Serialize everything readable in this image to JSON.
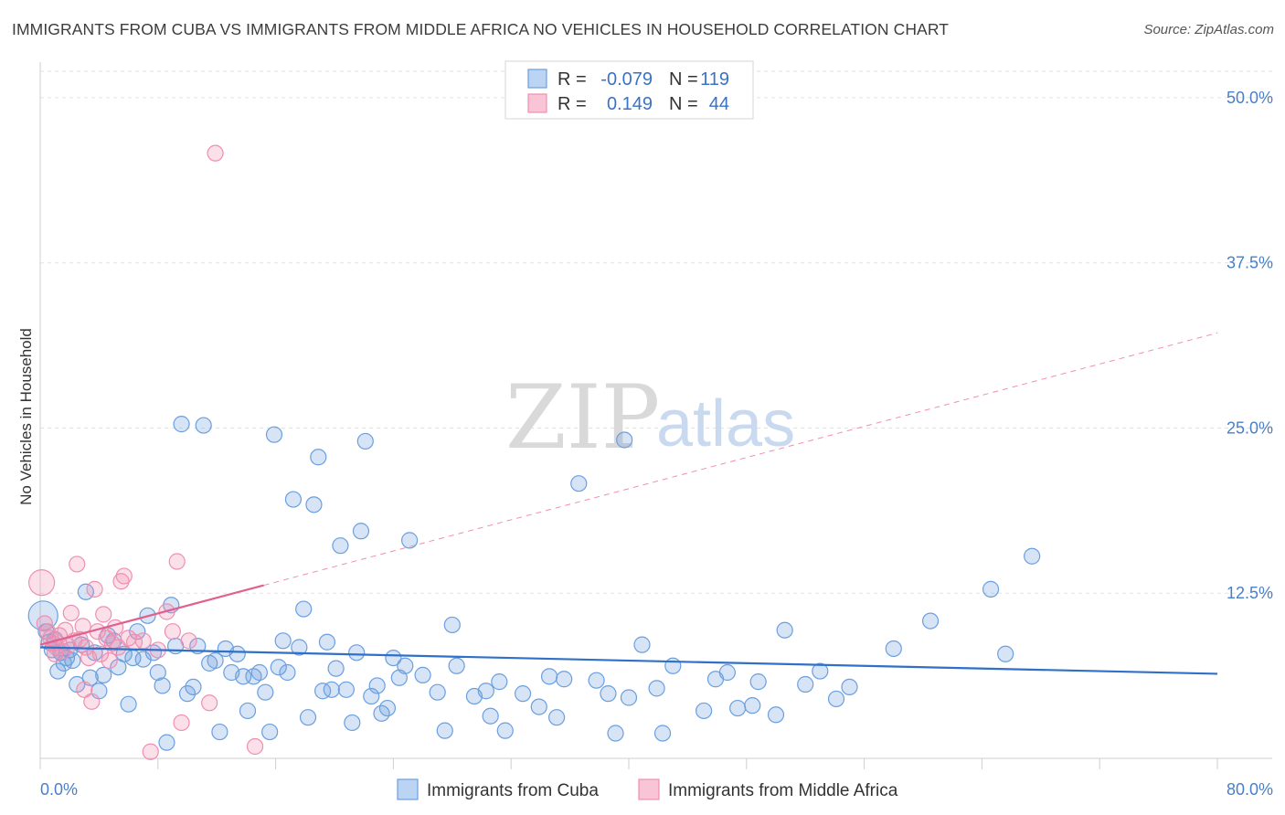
{
  "title": "IMMIGRANTS FROM CUBA VS IMMIGRANTS FROM MIDDLE AFRICA NO VEHICLES IN HOUSEHOLD CORRELATION CHART",
  "source": "Source: ZipAtlas.com",
  "watermark": {
    "zip": "ZIP",
    "atlas": "atlas"
  },
  "colors": {
    "cuba": "#6a9fe0",
    "cuba_line": "#3070c8",
    "africa": "#ef8fb0",
    "africa_line": "#e0608f",
    "tick_label": "#4a7fc8"
  },
  "legend": {
    "r_label": "R =",
    "n_label": "N =",
    "rows": [
      {
        "r": "-0.079",
        "n": "119"
      },
      {
        "r": "0.149",
        "n": "44"
      }
    ]
  },
  "chart_data": {
    "type": "scatter",
    "title": "IMMIGRANTS FROM CUBA VS IMMIGRANTS FROM MIDDLE AFRICA NO VEHICLES IN HOUSEHOLD CORRELATION CHART",
    "xlabel": "",
    "ylabel": "No Vehicles in Household",
    "xlim": [
      0,
      80
    ],
    "ylim": [
      0,
      52
    ],
    "x_tick_labels": [
      "0.0%",
      "80.0%"
    ],
    "y_ticks": [
      12.5,
      25.0,
      37.5,
      50.0
    ],
    "y_tick_labels": [
      "12.5%",
      "25.0%",
      "37.5%",
      "50.0%"
    ],
    "grid": true,
    "legend_position": "top-center",
    "series": [
      {
        "name": "Immigrants from Cuba",
        "trend": {
          "x0": 0,
          "y0": 8.4,
          "x1": 80,
          "y1": 6.4
        },
        "points": [
          [
            0.2,
            10.8
          ],
          [
            0.4,
            9.6
          ],
          [
            0.6,
            8.8
          ],
          [
            0.8,
            8.2
          ],
          [
            1.0,
            9.0
          ],
          [
            1.2,
            6.6
          ],
          [
            1.4,
            8.0
          ],
          [
            1.6,
            7.2
          ],
          [
            1.8,
            7.6
          ],
          [
            2.0,
            8.2
          ],
          [
            2.2,
            7.4
          ],
          [
            2.5,
            5.6
          ],
          [
            2.8,
            8.6
          ],
          [
            3.1,
            12.6
          ],
          [
            3.4,
            6.1
          ],
          [
            3.7,
            8.0
          ],
          [
            4.0,
            5.1
          ],
          [
            4.3,
            6.3
          ],
          [
            4.6,
            9.3
          ],
          [
            5.0,
            8.9
          ],
          [
            5.3,
            6.9
          ],
          [
            5.7,
            7.9
          ],
          [
            6.0,
            4.1
          ],
          [
            6.3,
            7.6
          ],
          [
            6.6,
            9.6
          ],
          [
            7.0,
            7.5
          ],
          [
            7.3,
            10.8
          ],
          [
            7.7,
            8.0
          ],
          [
            8.0,
            6.5
          ],
          [
            8.3,
            5.5
          ],
          [
            8.6,
            1.2
          ],
          [
            8.9,
            11.6
          ],
          [
            9.2,
            8.5
          ],
          [
            9.6,
            25.3
          ],
          [
            10.0,
            4.9
          ],
          [
            10.4,
            5.4
          ],
          [
            10.7,
            8.5
          ],
          [
            11.1,
            25.2
          ],
          [
            11.5,
            7.2
          ],
          [
            11.9,
            7.4
          ],
          [
            12.2,
            2.0
          ],
          [
            12.6,
            8.3
          ],
          [
            13.0,
            6.5
          ],
          [
            13.4,
            7.9
          ],
          [
            13.8,
            6.2
          ],
          [
            14.1,
            3.6
          ],
          [
            14.5,
            6.2
          ],
          [
            14.9,
            6.5
          ],
          [
            15.3,
            5.0
          ],
          [
            15.6,
            2.0
          ],
          [
            15.9,
            24.5
          ],
          [
            16.2,
            6.9
          ],
          [
            16.5,
            8.9
          ],
          [
            16.8,
            6.5
          ],
          [
            17.2,
            19.6
          ],
          [
            17.6,
            8.4
          ],
          [
            17.9,
            11.3
          ],
          [
            18.2,
            3.1
          ],
          [
            18.6,
            19.2
          ],
          [
            18.9,
            22.8
          ],
          [
            19.2,
            5.1
          ],
          [
            19.5,
            8.8
          ],
          [
            19.8,
            5.2
          ],
          [
            20.1,
            6.8
          ],
          [
            20.4,
            16.1
          ],
          [
            20.8,
            5.2
          ],
          [
            21.2,
            2.7
          ],
          [
            21.5,
            8.0
          ],
          [
            21.8,
            17.2
          ],
          [
            22.1,
            24.0
          ],
          [
            22.5,
            4.7
          ],
          [
            22.9,
            5.5
          ],
          [
            23.2,
            3.4
          ],
          [
            23.6,
            3.8
          ],
          [
            24.0,
            7.6
          ],
          [
            24.4,
            6.1
          ],
          [
            24.8,
            7.0
          ],
          [
            25.1,
            16.5
          ],
          [
            26.0,
            6.3
          ],
          [
            27.0,
            5.0
          ],
          [
            27.5,
            2.1
          ],
          [
            28.0,
            10.1
          ],
          [
            28.3,
            7.0
          ],
          [
            29.5,
            4.7
          ],
          [
            30.3,
            5.1
          ],
          [
            30.6,
            3.2
          ],
          [
            31.2,
            5.8
          ],
          [
            31.6,
            2.1
          ],
          [
            32.8,
            4.9
          ],
          [
            33.9,
            3.9
          ],
          [
            34.6,
            6.2
          ],
          [
            35.1,
            3.1
          ],
          [
            35.6,
            6.0
          ],
          [
            36.6,
            20.8
          ],
          [
            37.8,
            5.9
          ],
          [
            38.6,
            4.9
          ],
          [
            39.1,
            1.9
          ],
          [
            39.7,
            24.1
          ],
          [
            40.0,
            4.6
          ],
          [
            40.9,
            8.6
          ],
          [
            41.9,
            5.3
          ],
          [
            42.3,
            1.9
          ],
          [
            43.0,
            7.0
          ],
          [
            45.1,
            3.6
          ],
          [
            45.9,
            6.0
          ],
          [
            46.7,
            6.5
          ],
          [
            47.4,
            3.8
          ],
          [
            48.4,
            4.0
          ],
          [
            48.8,
            5.8
          ],
          [
            50.0,
            3.3
          ],
          [
            50.6,
            9.7
          ],
          [
            52.0,
            5.6
          ],
          [
            53.0,
            6.6
          ],
          [
            54.1,
            4.5
          ],
          [
            55.0,
            5.4
          ],
          [
            58.0,
            8.3
          ],
          [
            60.5,
            10.4
          ],
          [
            64.6,
            12.8
          ],
          [
            65.6,
            7.9
          ],
          [
            67.4,
            15.3
          ]
        ]
      },
      {
        "name": "Immigrants from Middle Africa",
        "trend": {
          "x0": 0,
          "y0": 8.6,
          "x1": 15.2,
          "y1": 13.1
        },
        "trend_extended": {
          "x0": 15.2,
          "y0": 13.1,
          "x1": 80,
          "y1": 32.2
        },
        "points": [
          [
            0.1,
            13.3
          ],
          [
            0.3,
            10.2
          ],
          [
            0.5,
            9.6
          ],
          [
            0.7,
            9.1
          ],
          [
            0.9,
            8.7
          ],
          [
            1.1,
            8.4
          ],
          [
            1.3,
            9.3
          ],
          [
            1.5,
            8.1
          ],
          [
            1.7,
            9.7
          ],
          [
            1.9,
            8.5
          ],
          [
            2.1,
            11.0
          ],
          [
            2.3,
            8.9
          ],
          [
            2.5,
            14.7
          ],
          [
            2.7,
            9.0
          ],
          [
            2.9,
            10.0
          ],
          [
            3.1,
            8.4
          ],
          [
            3.3,
            7.6
          ],
          [
            3.5,
            4.3
          ],
          [
            3.7,
            12.8
          ],
          [
            3.9,
            9.6
          ],
          [
            4.1,
            7.9
          ],
          [
            4.3,
            10.9
          ],
          [
            4.5,
            9.1
          ],
          [
            4.7,
            7.4
          ],
          [
            4.9,
            8.7
          ],
          [
            5.1,
            9.9
          ],
          [
            5.3,
            8.4
          ],
          [
            5.5,
            13.4
          ],
          [
            5.7,
            13.8
          ],
          [
            6.0,
            9.1
          ],
          [
            6.4,
            8.8
          ],
          [
            7.0,
            8.9
          ],
          [
            7.5,
            0.5
          ],
          [
            8.0,
            8.2
          ],
          [
            8.6,
            11.1
          ],
          [
            9.0,
            9.6
          ],
          [
            9.3,
            14.9
          ],
          [
            9.6,
            2.7
          ],
          [
            10.1,
            8.9
          ],
          [
            11.5,
            4.2
          ],
          [
            11.9,
            45.8
          ],
          [
            14.6,
            0.9
          ],
          [
            3.0,
            5.2
          ],
          [
            1.0,
            7.9
          ]
        ]
      }
    ]
  },
  "bottom_legend": [
    {
      "label": "Immigrants from Cuba"
    },
    {
      "label": "Immigrants from Middle Africa"
    }
  ]
}
